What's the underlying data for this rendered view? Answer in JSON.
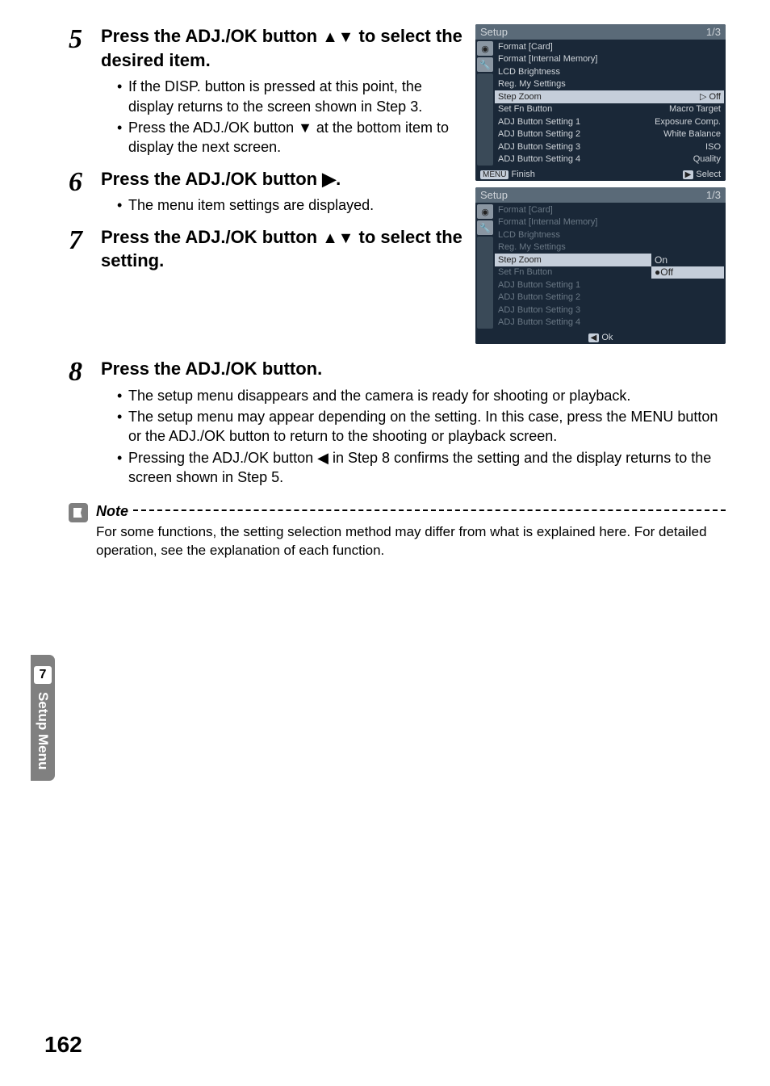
{
  "steps": {
    "s5": {
      "num": "5",
      "title_a": "Press the ADJ./OK button ",
      "title_b": " to select the desired item.",
      "bullets": [
        "If the DISP. button is pressed at this point, the display returns to the screen shown in Step 3.",
        "Press the ADJ./OK button ▼ at the bottom item to display the next screen."
      ]
    },
    "s6": {
      "num": "6",
      "title": "Press the ADJ./OK button ▶.",
      "bullets": [
        "The menu item settings are displayed."
      ]
    },
    "s7": {
      "num": "7",
      "title_a": "Press the ADJ./OK button ",
      "title_b": " to select the setting."
    },
    "s8": {
      "num": "8",
      "title": "Press the ADJ./OK button.",
      "bullets": [
        "The setup menu disappears and the camera is ready for shooting or playback.",
        "The setup menu may appear depending on the setting. In this case, press the MENU button or the ADJ./OK button to return to the shooting or playback screen.",
        "Pressing the ADJ./OK button ◀ in Step 8 confirms the setting and the display returns to the screen shown in Step 5."
      ]
    }
  },
  "screenshot1": {
    "title": "Setup",
    "page": "1/3",
    "rows": [
      {
        "l": "Format [Card]",
        "r": ""
      },
      {
        "l": "Format [Internal Memory]",
        "r": ""
      },
      {
        "l": "LCD Brightness",
        "r": ""
      },
      {
        "l": "Reg. My Settings",
        "r": ""
      },
      {
        "l": "Step Zoom",
        "r": "▷ Off",
        "hl": true
      },
      {
        "l": "Set Fn Button",
        "r": "Macro Target"
      },
      {
        "l": "ADJ Button Setting 1",
        "r": "Exposure Comp."
      },
      {
        "l": "ADJ Button Setting 2",
        "r": "White Balance"
      },
      {
        "l": "ADJ Button Setting 3",
        "r": "ISO"
      },
      {
        "l": "ADJ Button Setting 4",
        "r": "Quality"
      }
    ],
    "footer_l": "Finish",
    "footer_btn_l": "MENU",
    "footer_r": "Select",
    "footer_btn_r": "▶"
  },
  "screenshot2": {
    "title": "Setup",
    "page": "1/3",
    "rows": [
      {
        "l": "Format [Card]",
        "d": true
      },
      {
        "l": "Format [Internal Memory]",
        "d": true
      },
      {
        "l": "LCD Brightness",
        "d": true
      },
      {
        "l": "Reg. My Settings",
        "d": true
      },
      {
        "l": "Step Zoom",
        "r": "On",
        "hl": true,
        "rbox": true
      },
      {
        "l": "Set Fn Button",
        "d": true,
        "r": "●Off",
        "rbox_hl": true
      },
      {
        "l": "ADJ Button Setting 1",
        "d": true
      },
      {
        "l": "ADJ Button Setting 2",
        "d": true
      },
      {
        "l": "ADJ Button Setting 3",
        "d": true
      },
      {
        "l": "ADJ Button Setting 4",
        "d": true
      }
    ],
    "footer_c": "Ok",
    "footer_btn_c": "◀"
  },
  "note": {
    "label": "Note",
    "text": "For some functions, the setting selection method may differ from what is explained here. For detailed operation, see the explanation of each function."
  },
  "sidetab": {
    "num": "7",
    "label": "Setup Menu"
  },
  "pagenum": "162"
}
